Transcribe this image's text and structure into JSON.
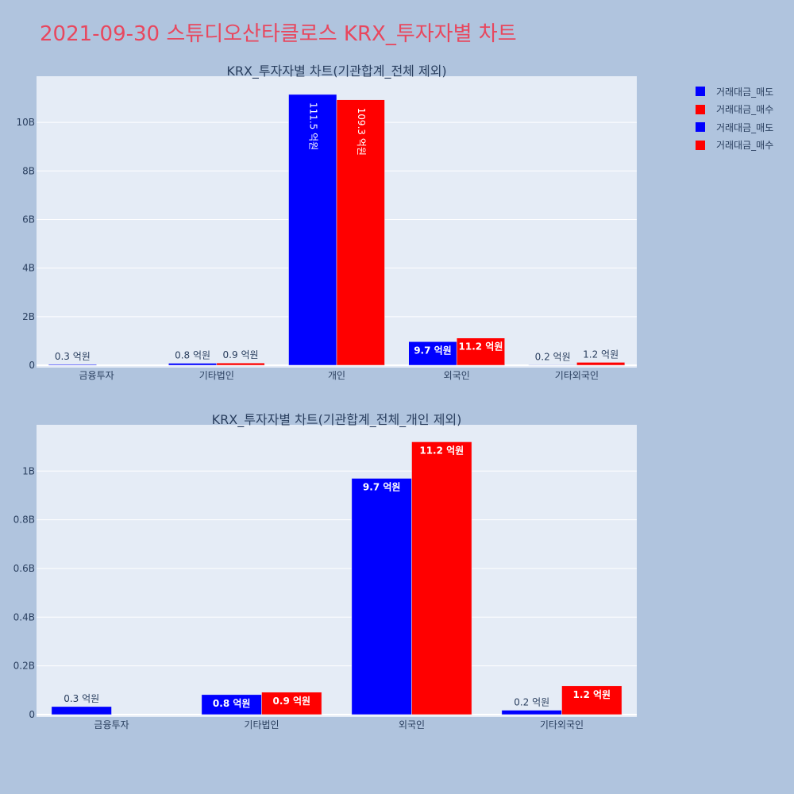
{
  "page": {
    "title": "2021-09-30 스튜디오산타클로스 KRX_투자자별 차트"
  },
  "legend": {
    "items": [
      {
        "label": "거래대금_매도",
        "color": "#0000ff"
      },
      {
        "label": "거래대금_매수",
        "color": "#ff0000"
      },
      {
        "label": "거래대금_매도",
        "color": "#0000ff"
      },
      {
        "label": "거래대금_매수",
        "color": "#ff0000"
      }
    ]
  },
  "chart_data": [
    {
      "type": "bar",
      "title": "KRX_투자자별 차트(기관합계_전체 제외)",
      "categories": [
        "금융투자",
        "기타법인",
        "개인",
        "외국인",
        "기타외국인"
      ],
      "ylim": [
        0,
        11900000000
      ],
      "yticks": [
        0,
        2000000000,
        4000000000,
        6000000000,
        8000000000,
        10000000000
      ],
      "ytick_labels": [
        "0",
        "2B",
        "4B",
        "6B",
        "8B",
        "10B"
      ],
      "grid": true,
      "legend_position": "top-right",
      "series": [
        {
          "name": "거래대금_매도",
          "color": "#0000ff",
          "values": [
            33000000,
            82000000,
            11150000000,
            970000000,
            18000000
          ],
          "labels": [
            "0.3 억원",
            "0.8 억원",
            "111.5 억원",
            "9.7 억원",
            "0.2 억원"
          ]
        },
        {
          "name": "거래대금_매수",
          "color": "#ff0000",
          "values": [
            0,
            92000000,
            10930000000,
            1120000000,
            118000000
          ],
          "labels": [
            "",
            "0.9 억원",
            "109.3 억원",
            "11.2 억원",
            "1.2 억원"
          ]
        }
      ]
    },
    {
      "type": "bar",
      "title": "KRX_투자자별 차트(기관합계_전체_개인 제외)",
      "categories": [
        "금융투자",
        "기타법인",
        "외국인",
        "기타외국인"
      ],
      "ylim": [
        0,
        1190000000
      ],
      "yticks": [
        0,
        200000000,
        400000000,
        600000000,
        800000000,
        1000000000
      ],
      "ytick_labels": [
        "0",
        "0.2B",
        "0.4B",
        "0.6B",
        "0.8B",
        "1B"
      ],
      "grid": true,
      "series": [
        {
          "name": "거래대금_매도",
          "color": "#0000ff",
          "values": [
            33000000,
            82000000,
            970000000,
            18000000
          ],
          "labels": [
            "0.3 억원",
            "0.8 억원",
            "9.7 억원",
            "0.2 억원"
          ]
        },
        {
          "name": "거래대금_매수",
          "color": "#ff0000",
          "values": [
            0,
            92000000,
            1120000000,
            118000000
          ],
          "labels": [
            "",
            "0.9 억원",
            "11.2 억원",
            "1.2 억원"
          ]
        }
      ]
    }
  ]
}
